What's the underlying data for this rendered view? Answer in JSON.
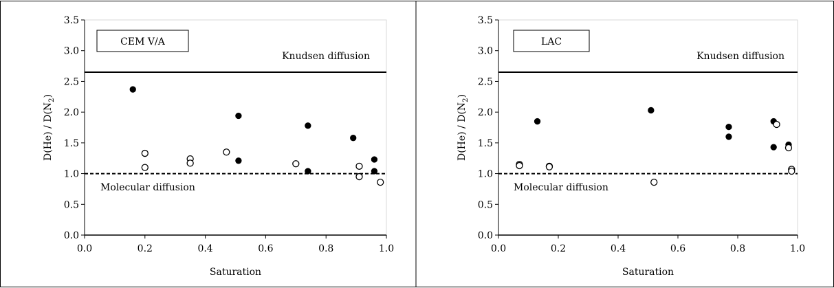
{
  "chart_data": [
    {
      "type": "scatter",
      "title": "",
      "legend_label": "CEM V/A",
      "xlabel": "Saturation",
      "ylabel_main": "D(He) / D(N",
      "ylabel_sub": "2",
      "ylabel_close": ")",
      "xlim": [
        0,
        1
      ],
      "ylim": [
        0,
        3.5
      ],
      "x_ticks": [
        "0.0",
        "0.2",
        "0.4",
        "0.6",
        "0.8",
        "1.0"
      ],
      "y_ticks": [
        "0.0",
        "0.5",
        "1.0",
        "1.5",
        "2.0",
        "2.5",
        "3.0",
        "3.5"
      ],
      "knudsen": {
        "value": 2.65,
        "label": "Knudsen diffusion"
      },
      "molecular": {
        "value": 1.0,
        "label": "Molecular diffusion"
      },
      "series": [
        {
          "fill": "filled",
          "points": [
            [
              0.16,
              2.37
            ],
            [
              0.51,
              1.94
            ],
            [
              0.51,
              1.21
            ],
            [
              0.74,
              1.78
            ],
            [
              0.74,
              1.04
            ],
            [
              0.89,
              1.58
            ],
            [
              0.96,
              1.23
            ],
            [
              0.96,
              1.04
            ]
          ]
        },
        {
          "fill": "open",
          "points": [
            [
              0.2,
              1.33
            ],
            [
              0.2,
              1.1
            ],
            [
              0.35,
              1.24
            ],
            [
              0.35,
              1.17
            ],
            [
              0.47,
              1.35
            ],
            [
              0.7,
              1.16
            ],
            [
              0.91,
              1.12
            ],
            [
              0.91,
              0.95
            ],
            [
              0.98,
              0.86
            ]
          ]
        }
      ]
    },
    {
      "type": "scatter",
      "title": "",
      "legend_label": "LAC",
      "xlabel": "Saturation",
      "ylabel_main": "D(He) / D(N",
      "ylabel_sub": "2",
      "ylabel_close": ")",
      "xlim": [
        0,
        1
      ],
      "ylim": [
        0,
        3.5
      ],
      "x_ticks": [
        "0.0",
        "0.2",
        "0.4",
        "0.6",
        "0.8",
        "1.0"
      ],
      "y_ticks": [
        "0.0",
        "0.5",
        "1.0",
        "1.5",
        "2.0",
        "2.5",
        "3.0",
        "3.5"
      ],
      "knudsen": {
        "value": 2.65,
        "label": "Knudsen diffusion"
      },
      "molecular": {
        "value": 1.0,
        "label": "Molecular diffusion"
      },
      "series": [
        {
          "fill": "filled",
          "points": [
            [
              0.13,
              1.85
            ],
            [
              0.51,
              2.03
            ],
            [
              0.77,
              1.76
            ],
            [
              0.77,
              1.6
            ],
            [
              0.92,
              1.85
            ],
            [
              0.92,
              1.43
            ],
            [
              0.97,
              1.47
            ]
          ]
        },
        {
          "fill": "open",
          "points": [
            [
              0.07,
              1.15
            ],
            [
              0.07,
              1.13
            ],
            [
              0.17,
              1.12
            ],
            [
              0.17,
              1.11
            ],
            [
              0.52,
              0.86
            ],
            [
              0.93,
              1.8
            ],
            [
              0.97,
              1.42
            ],
            [
              0.98,
              1.07
            ],
            [
              0.98,
              1.04
            ]
          ]
        }
      ]
    }
  ]
}
